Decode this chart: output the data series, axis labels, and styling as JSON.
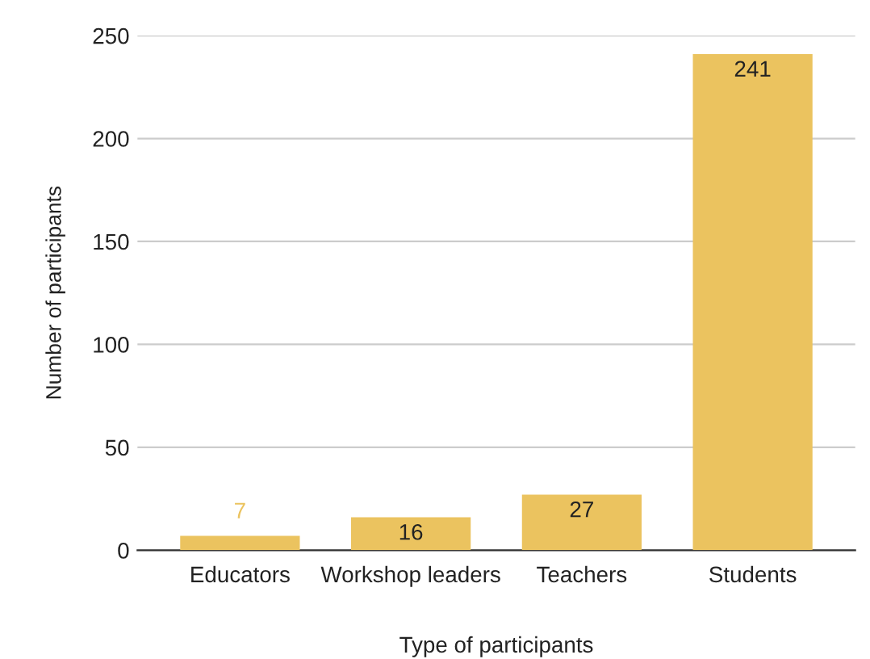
{
  "chart_data": {
    "type": "bar",
    "xlabel": "Type of participants",
    "ylabel": "Number of participants",
    "categories": [
      "Educators",
      "Workshop leaders",
      "Teachers",
      "Students"
    ],
    "values": [
      7,
      16,
      27,
      241
    ],
    "color": "#ebc35f",
    "ylim": [
      0,
      250
    ],
    "yticks": [
      0,
      50,
      100,
      150,
      200,
      250
    ],
    "grid": "y",
    "data_labels": true
  }
}
